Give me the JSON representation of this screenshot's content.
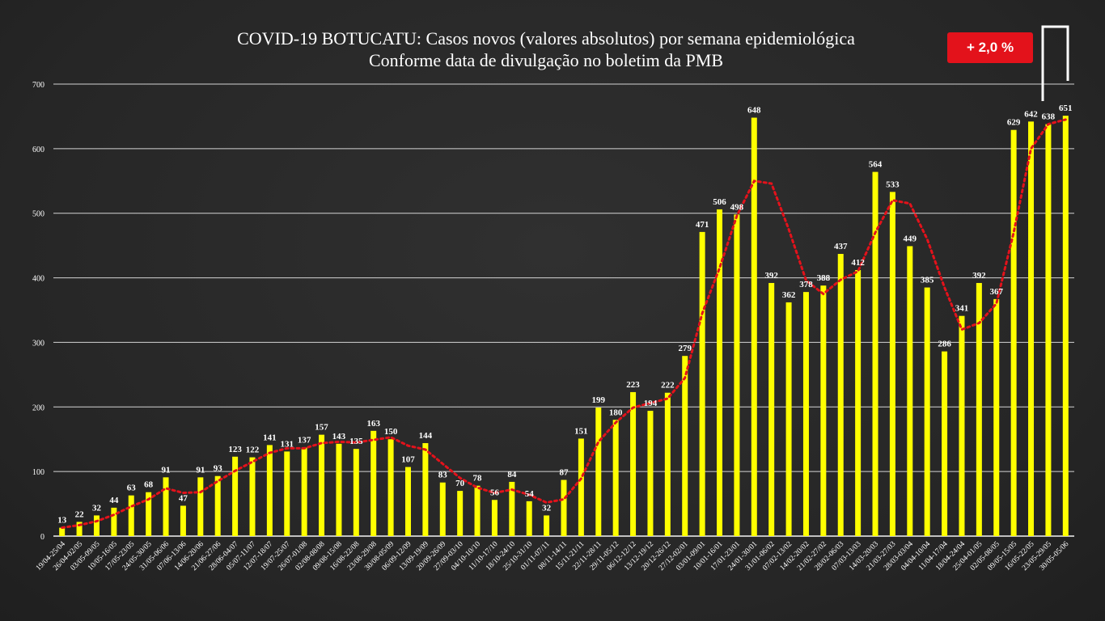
{
  "header": {
    "title_line1": "COVID-19 BOTUCATU: Casos novos (valores absolutos) por semana epidemiológica",
    "title_line2": "Conforme data de divulgação no boletim da PMB",
    "badge": "+ 2,0 %"
  },
  "colors": {
    "bar": "#ffff00",
    "trend": "#e3121b",
    "badge": "#e3121b",
    "grid": "#ffffff",
    "background": "#2a2a2a"
  },
  "chart_data": {
    "type": "bar",
    "title": "COVID-19 BOTUCATU: Casos novos (valores absolutos) por semana epidemiológica",
    "subtitle": "Conforme data de divulgação no boletim da PMB",
    "xlabel": "",
    "ylabel": "",
    "ylim": [
      0,
      700
    ],
    "yticks": [
      0,
      100,
      200,
      300,
      400,
      500,
      600,
      700
    ],
    "grid": true,
    "legend": "none",
    "trendline": "moving average (dotted red)",
    "categories": [
      "19/04-25/04",
      "26/04-02/05",
      "03/05-09/05",
      "10/05-16/05",
      "17/05-23/05",
      "24/05-30/05",
      "31/05-06/06",
      "07/06-13/06",
      "14/06-20/06",
      "21/06-27/06",
      "28/06-04/07",
      "05/07-11/07",
      "12/07-18/07",
      "19/07-25/07",
      "26/07-01/08",
      "02/08-08/08",
      "09/08-15/08",
      "16/08-22/08",
      "23/08-29/08",
      "30/08-05/09",
      "06/09-12/09",
      "13/09-19/09",
      "20/09-26/09",
      "27/09-03/10",
      "04/10-10/10",
      "11/10-17/10",
      "18/10-24/10",
      "25/10-31/10",
      "01/11-07/11",
      "08/11-14/11",
      "15/11-21/11",
      "22/11-28/11",
      "29/11-05/12",
      "06/12-12/12",
      "13/12-19/12",
      "20/12-26/12",
      "27/12-02/01",
      "03/01-09/01",
      "10/01-16/01",
      "17/01-23/01",
      "24/01-30/01",
      "31/01-06/02",
      "07/02-13/02",
      "14/02-20/02",
      "21/02-27/02",
      "28/02-06/03",
      "07/03-13/03",
      "14/03-20/03",
      "21/03-27/03",
      "28/03-03/04",
      "04/04-10/04",
      "11/04-17/04",
      "18/04-24/04",
      "25/04-01/05",
      "02/05-08/05",
      "09/05-15/05",
      "16/05-22/05",
      "23/05-29/05",
      "30/05-05/06"
    ],
    "series": [
      {
        "values": [
          13,
          22,
          32,
          44,
          63,
          68,
          91,
          47,
          91,
          93,
          123,
          122,
          141,
          131,
          137,
          157,
          143,
          135,
          163,
          150,
          107,
          144,
          83,
          70,
          78,
          56,
          84,
          54,
          32,
          87,
          151,
          199,
          180,
          223,
          194,
          222,
          279,
          471,
          506,
          498,
          648,
          392,
          362,
          378,
          388,
          437,
          412,
          564,
          533,
          449,
          385,
          286,
          341,
          392,
          367,
          629,
          642,
          638,
          651
        ]
      }
    ],
    "trend_values": [
      13,
      17,
      23,
      33,
      46,
      57,
      74,
      67,
      68,
      85,
      101,
      115,
      129,
      136,
      136,
      144,
      146,
      145,
      149,
      153,
      140,
      134,
      112,
      90,
      75,
      67,
      72,
      64,
      52,
      57,
      89,
      146,
      176,
      199,
      206,
      213,
      245,
      345,
      415,
      496,
      550,
      546,
      475,
      396,
      375,
      397,
      410,
      470,
      520,
      515,
      460,
      385,
      320,
      330,
      360,
      470,
      600,
      638,
      645
    ]
  }
}
